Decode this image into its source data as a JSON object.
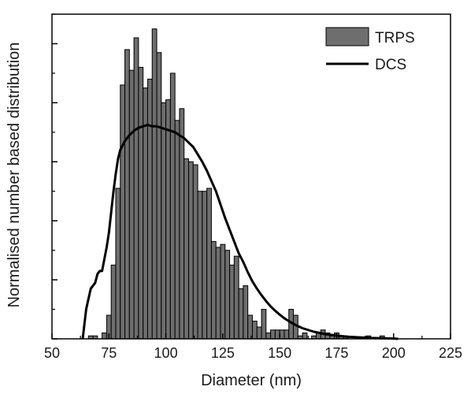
{
  "chart_data": {
    "type": "bar",
    "title": "",
    "xlabel": "Diameter (nm)",
    "ylabel": "Normalised number based distribution",
    "xlim": [
      50,
      225
    ],
    "ylim": [
      0,
      1.1
    ],
    "xticks": [
      "50",
      "75",
      "100",
      "125",
      "150",
      "175",
      "200",
      "225"
    ],
    "y_tick_labels_shown": false,
    "grid": false,
    "legend_position": "top-right",
    "colors": {
      "bar_fill": "#6e6e6e",
      "bar_stroke": "#000000",
      "line": "#000000"
    },
    "series": [
      {
        "name": "TRPS",
        "type": "bar",
        "bin_width": 2,
        "x": [
          67,
          69,
          71,
          73,
          75,
          77,
          79,
          81,
          83,
          85,
          87,
          89,
          91,
          93,
          95,
          97,
          99,
          101,
          103,
          105,
          107,
          109,
          111,
          113,
          115,
          117,
          119,
          121,
          123,
          125,
          127,
          129,
          131,
          133,
          135,
          137,
          139,
          141,
          143,
          145,
          147,
          149,
          151,
          153,
          155,
          157,
          159,
          161,
          163,
          165,
          167,
          169,
          171,
          173,
          175,
          177,
          179,
          181,
          183,
          185,
          187,
          189,
          191,
          193,
          195,
          197,
          199,
          201
        ],
        "values": [
          0.01,
          0.01,
          0.0,
          0.02,
          0.08,
          0.25,
          0.51,
          0.86,
          0.98,
          0.91,
          1.02,
          0.92,
          0.85,
          0.88,
          1.05,
          0.97,
          0.8,
          0.81,
          0.9,
          0.74,
          0.78,
          0.61,
          0.6,
          0.59,
          0.5,
          0.5,
          0.51,
          0.33,
          0.31,
          0.32,
          0.3,
          0.25,
          0.28,
          0.17,
          0.18,
          0.08,
          0.06,
          0.04,
          0.1,
          0.02,
          0.03,
          0.03,
          0.03,
          0.03,
          0.1,
          0.08,
          0.01,
          0.02,
          0.0,
          0.01,
          0.02,
          0.03,
          0.02,
          0.01,
          0.02,
          0.01,
          0.01,
          0.0,
          0.0,
          0.0,
          0.0,
          0.01,
          0.0,
          0.0,
          0.01,
          0.0,
          0.0,
          0.0
        ]
      },
      {
        "name": "DCS",
        "type": "line",
        "x": [
          63.5,
          65,
          67,
          69,
          70,
          71,
          72,
          73,
          74,
          75,
          76,
          77,
          78,
          79,
          80,
          82,
          84,
          86,
          88,
          90,
          92,
          94,
          96,
          98,
          100,
          102,
          104,
          106,
          108,
          110,
          112,
          114,
          116,
          118,
          120,
          122,
          124,
          126,
          128,
          130,
          132,
          134,
          136,
          138,
          140,
          142,
          144,
          146,
          148,
          150,
          152,
          154,
          156,
          158,
          160,
          165,
          170,
          175,
          180,
          185,
          190,
          195,
          200,
          202
        ],
        "values": [
          0.0,
          0.1,
          0.17,
          0.19,
          0.22,
          0.23,
          0.23,
          0.27,
          0.31,
          0.36,
          0.43,
          0.5,
          0.56,
          0.61,
          0.64,
          0.67,
          0.69,
          0.705,
          0.715,
          0.72,
          0.725,
          0.72,
          0.72,
          0.715,
          0.71,
          0.705,
          0.7,
          0.69,
          0.68,
          0.665,
          0.65,
          0.625,
          0.6,
          0.57,
          0.535,
          0.5,
          0.455,
          0.41,
          0.37,
          0.33,
          0.29,
          0.26,
          0.225,
          0.195,
          0.17,
          0.148,
          0.128,
          0.11,
          0.095,
          0.082,
          0.07,
          0.06,
          0.051,
          0.043,
          0.036,
          0.024,
          0.016,
          0.011,
          0.007,
          0.005,
          0.003,
          0.002,
          0.001,
          0.0
        ]
      }
    ]
  }
}
